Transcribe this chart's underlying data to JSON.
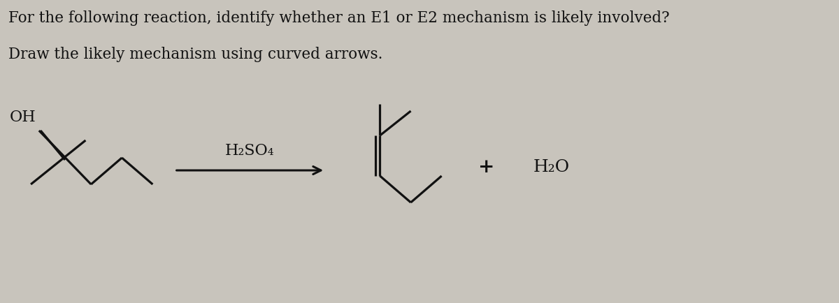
{
  "bg_color": "#c8c4bc",
  "text_color": "#111111",
  "title_line1": "For the following reaction, identify whether an E1 or E2 mechanism is likely involved?",
  "title_line2": "Draw the likely mechanism using curved arrows.",
  "reagent": "H₂SO₄",
  "plus": "+",
  "product2": "H₂O",
  "title_fontsize": 15.5,
  "label_fontsize": 16,
  "lw": 2.3
}
